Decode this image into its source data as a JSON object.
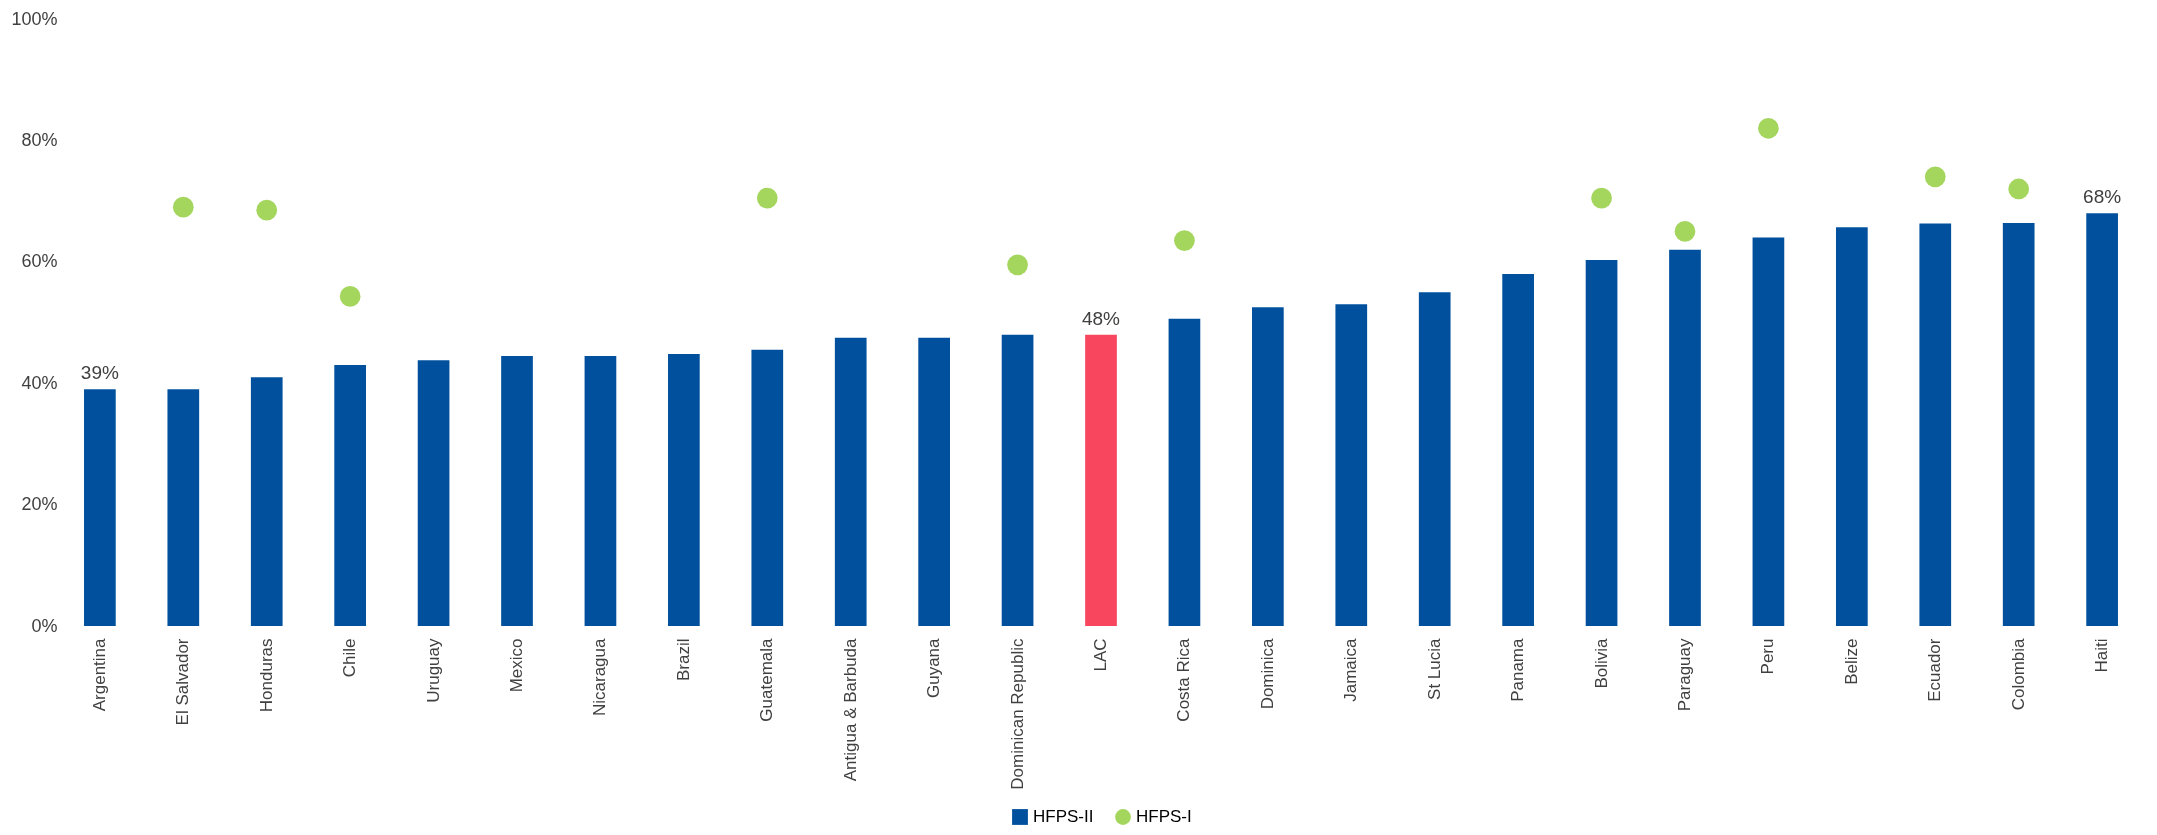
{
  "chart_data": {
    "type": "bar",
    "categories": [
      "Argentina",
      "El Salvador",
      "Honduras",
      "Chile",
      "Uruguay",
      "Mexico",
      "Nicaragua",
      "Brazil",
      "Guatemala",
      "Antigua & Barbuda",
      "Guyana",
      "Dominican Republic",
      "LAC",
      "Costa Rica",
      "Dominica",
      "Jamaica",
      "St Lucia",
      "Panama",
      "Bolivia",
      "Paraguay",
      "Peru",
      "Belize",
      "Ecuador",
      "Colombia",
      "Haiti"
    ],
    "series": [
      {
        "name": "HFPS-II",
        "color": "#00509d",
        "colors": [
          "#00509d",
          "#00509d",
          "#00509d",
          "#00509d",
          "#00509d",
          "#00509d",
          "#00509d",
          "#00509d",
          "#00509d",
          "#00509d",
          "#00509d",
          "#00509d",
          "#f7465e",
          "#00509d",
          "#00509d",
          "#00509d",
          "#00509d",
          "#00509d",
          "#00509d",
          "#00509d",
          "#00509d",
          "#00509d",
          "#00509d",
          "#00509d",
          "#00509d"
        ],
        "values": [
          39,
          39,
          41,
          43,
          43.8,
          44.5,
          44.5,
          44.8,
          45.5,
          47.5,
          47.5,
          48,
          48,
          50.6,
          52.5,
          53,
          55,
          58,
          60.3,
          62,
          64,
          65.7,
          66.3,
          66.4,
          68
        ],
        "value_labels": [
          "39%",
          null,
          null,
          null,
          null,
          null,
          null,
          null,
          null,
          null,
          null,
          null,
          "48%",
          null,
          null,
          null,
          null,
          null,
          null,
          null,
          null,
          null,
          null,
          null,
          "68%"
        ]
      },
      {
        "name": "HFPS-I",
        "type": "scatter",
        "color": "#a4d65e",
        "x": [
          "El Salvador",
          "Honduras",
          "Chile",
          "Guatemala",
          "Dominican Republic",
          "Costa Rica",
          "Bolivia",
          "Paraguay",
          "Peru",
          "Ecuador",
          "Colombia"
        ],
        "values": [
          69,
          68.5,
          54.3,
          70.5,
          59.5,
          63.5,
          70.5,
          65,
          82,
          74,
          72
        ]
      }
    ],
    "ylim": [
      0,
      100
    ],
    "yticks": [
      {
        "value": 0,
        "label": "0%"
      },
      {
        "value": 20,
        "label": "20%"
      },
      {
        "value": 40,
        "label": "40%"
      },
      {
        "value": 60,
        "label": "60%"
      },
      {
        "value": 80,
        "label": "80%"
      },
      {
        "value": 100,
        "label": "100%"
      }
    ],
    "grid": false,
    "legend": "bottom",
    "marker": "circle"
  }
}
